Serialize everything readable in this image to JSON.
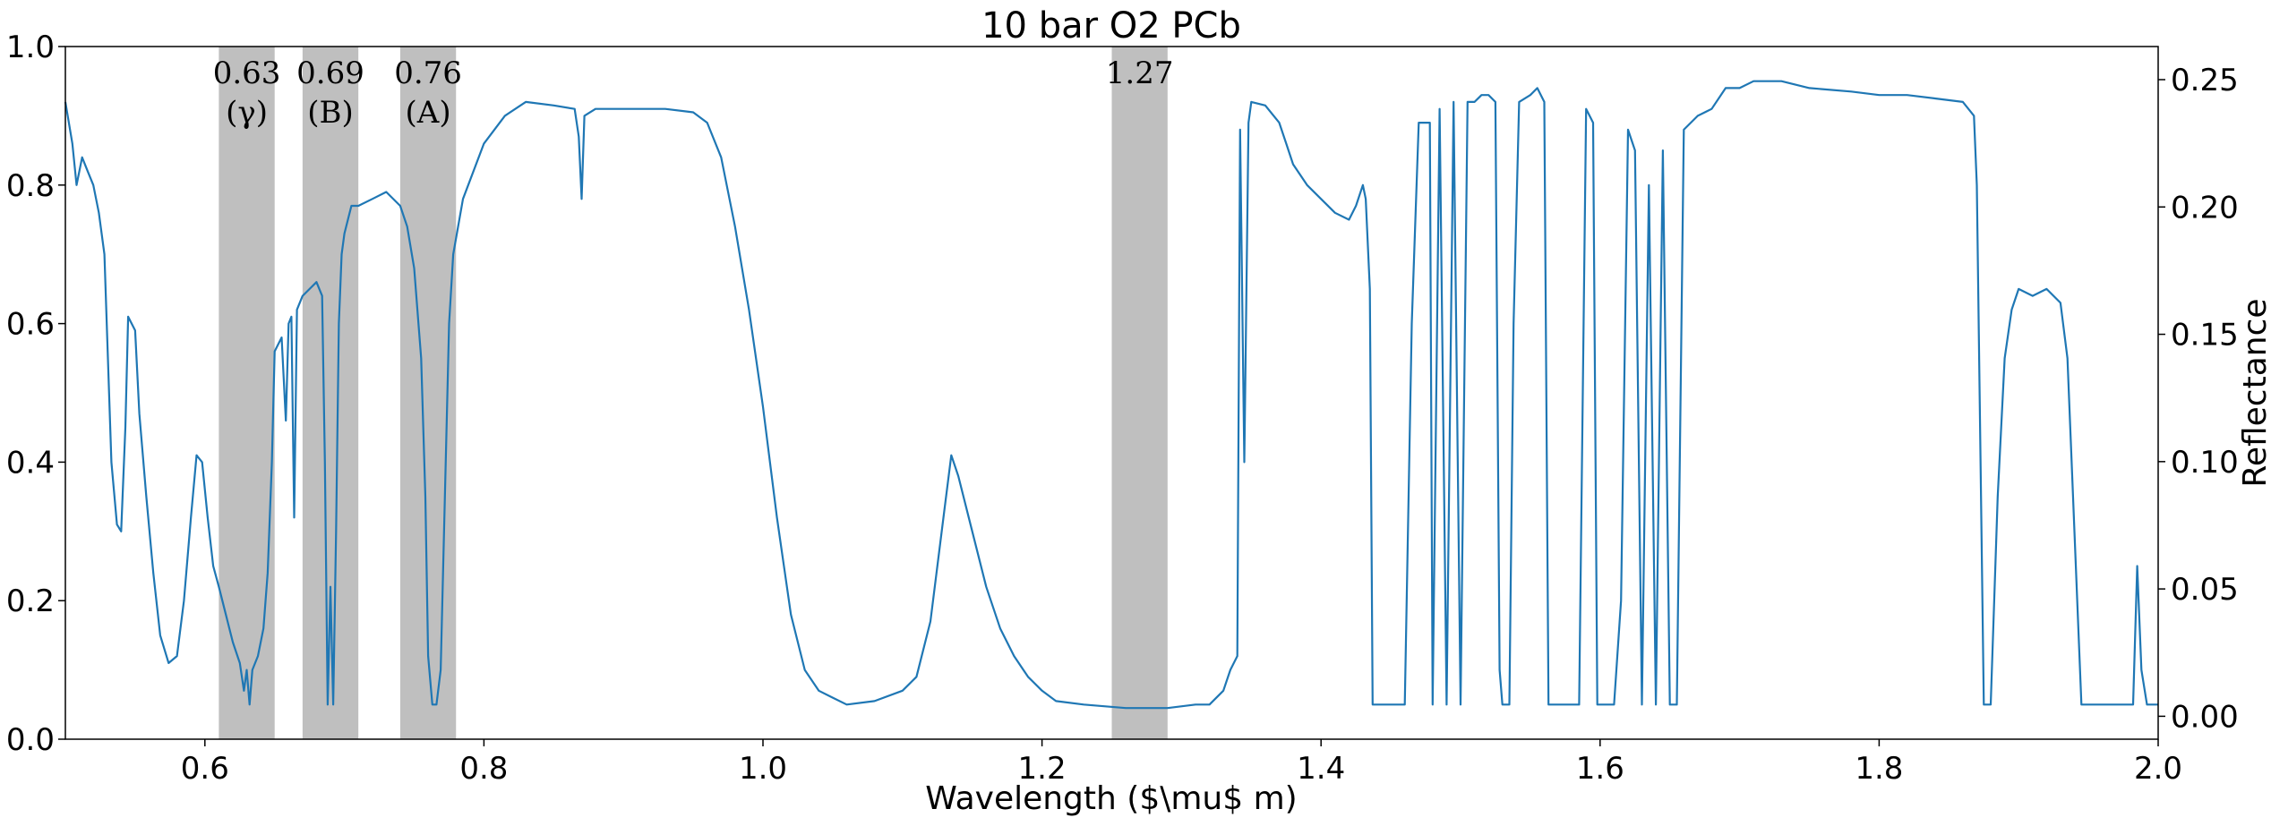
{
  "chart_data": {
    "type": "line",
    "title": "10 bar O2 PCb",
    "xlabel": "Wavelength ($\\mu$ m)",
    "ylabel_left": "",
    "ylabel_right": "Reflectance",
    "xlim": [
      0.5,
      2.0
    ],
    "ylim_left": [
      0.0,
      1.0
    ],
    "ylim_right": [
      -0.009,
      0.263
    ],
    "x_ticks": [
      "0.6",
      "0.8",
      "1.0",
      "1.2",
      "1.4",
      "1.6",
      "1.8",
      "2.0"
    ],
    "y_left_ticks": [
      "0.0",
      "0.2",
      "0.4",
      "0.6",
      "0.8",
      "1.0"
    ],
    "y_right_ticks": [
      "0.00",
      "0.05",
      "0.10",
      "0.15",
      "0.20",
      "0.25"
    ],
    "grid": false,
    "color": "#1f77b4",
    "band_color": "#bfbfbf",
    "bands": [
      {
        "x0": 0.61,
        "x1": 0.65,
        "label_top": "0.63",
        "label_bottom": "(γ)"
      },
      {
        "x0": 0.67,
        "x1": 0.71,
        "label_top": "0.69",
        "label_bottom": "(B)"
      },
      {
        "x0": 0.74,
        "x1": 0.78,
        "label_top": "0.76",
        "label_bottom": "(A)"
      },
      {
        "x0": 1.25,
        "x1": 1.29,
        "label_top": "1.27",
        "label_bottom": ""
      }
    ],
    "series": [
      {
        "values": [
          [
            0.5,
            0.92
          ],
          [
            0.505,
            0.86
          ],
          [
            0.508,
            0.8
          ],
          [
            0.512,
            0.84
          ],
          [
            0.516,
            0.82
          ],
          [
            0.52,
            0.8
          ],
          [
            0.524,
            0.76
          ],
          [
            0.528,
            0.7
          ],
          [
            0.533,
            0.4
          ],
          [
            0.537,
            0.31
          ],
          [
            0.54,
            0.3
          ],
          [
            0.543,
            0.45
          ],
          [
            0.545,
            0.61
          ],
          [
            0.55,
            0.59
          ],
          [
            0.553,
            0.47
          ],
          [
            0.558,
            0.35
          ],
          [
            0.563,
            0.24
          ],
          [
            0.568,
            0.15
          ],
          [
            0.574,
            0.11
          ],
          [
            0.58,
            0.12
          ],
          [
            0.585,
            0.2
          ],
          [
            0.59,
            0.32
          ],
          [
            0.594,
            0.41
          ],
          [
            0.598,
            0.4
          ],
          [
            0.602,
            0.32
          ],
          [
            0.606,
            0.25
          ],
          [
            0.61,
            0.22
          ],
          [
            0.615,
            0.18
          ],
          [
            0.62,
            0.14
          ],
          [
            0.625,
            0.11
          ],
          [
            0.628,
            0.07
          ],
          [
            0.63,
            0.1
          ],
          [
            0.632,
            0.05
          ],
          [
            0.634,
            0.1
          ],
          [
            0.638,
            0.12
          ],
          [
            0.642,
            0.16
          ],
          [
            0.645,
            0.24
          ],
          [
            0.648,
            0.4
          ],
          [
            0.65,
            0.56
          ],
          [
            0.655,
            0.58
          ],
          [
            0.658,
            0.46
          ],
          [
            0.66,
            0.6
          ],
          [
            0.662,
            0.61
          ],
          [
            0.664,
            0.32
          ],
          [
            0.666,
            0.62
          ],
          [
            0.67,
            0.64
          ],
          [
            0.675,
            0.65
          ],
          [
            0.68,
            0.66
          ],
          [
            0.684,
            0.64
          ],
          [
            0.686,
            0.4
          ],
          [
            0.688,
            0.05
          ],
          [
            0.69,
            0.22
          ],
          [
            0.692,
            0.05
          ],
          [
            0.694,
            0.3
          ],
          [
            0.696,
            0.6
          ],
          [
            0.698,
            0.7
          ],
          [
            0.7,
            0.73
          ],
          [
            0.705,
            0.77
          ],
          [
            0.71,
            0.77
          ],
          [
            0.72,
            0.78
          ],
          [
            0.73,
            0.79
          ],
          [
            0.74,
            0.77
          ],
          [
            0.745,
            0.74
          ],
          [
            0.75,
            0.68
          ],
          [
            0.755,
            0.55
          ],
          [
            0.758,
            0.35
          ],
          [
            0.76,
            0.12
          ],
          [
            0.763,
            0.05
          ],
          [
            0.766,
            0.05
          ],
          [
            0.769,
            0.1
          ],
          [
            0.772,
            0.35
          ],
          [
            0.775,
            0.6
          ],
          [
            0.778,
            0.7
          ],
          [
            0.785,
            0.78
          ],
          [
            0.8,
            0.86
          ],
          [
            0.815,
            0.9
          ],
          [
            0.83,
            0.92
          ],
          [
            0.85,
            0.915
          ],
          [
            0.865,
            0.91
          ],
          [
            0.868,
            0.87
          ],
          [
            0.87,
            0.78
          ],
          [
            0.872,
            0.9
          ],
          [
            0.88,
            0.91
          ],
          [
            0.9,
            0.91
          ],
          [
            0.93,
            0.91
          ],
          [
            0.95,
            0.905
          ],
          [
            0.96,
            0.89
          ],
          [
            0.97,
            0.84
          ],
          [
            0.98,
            0.74
          ],
          [
            0.99,
            0.62
          ],
          [
            1.0,
            0.48
          ],
          [
            1.01,
            0.32
          ],
          [
            1.02,
            0.18
          ],
          [
            1.03,
            0.1
          ],
          [
            1.04,
            0.07
          ],
          [
            1.05,
            0.06
          ],
          [
            1.06,
            0.05
          ],
          [
            1.08,
            0.055
          ],
          [
            1.1,
            0.07
          ],
          [
            1.11,
            0.09
          ],
          [
            1.12,
            0.17
          ],
          [
            1.13,
            0.33
          ],
          [
            1.135,
            0.41
          ],
          [
            1.14,
            0.38
          ],
          [
            1.15,
            0.3
          ],
          [
            1.16,
            0.22
          ],
          [
            1.17,
            0.16
          ],
          [
            1.18,
            0.12
          ],
          [
            1.19,
            0.09
          ],
          [
            1.2,
            0.07
          ],
          [
            1.21,
            0.055
          ],
          [
            1.23,
            0.05
          ],
          [
            1.26,
            0.045
          ],
          [
            1.29,
            0.045
          ],
          [
            1.31,
            0.05
          ],
          [
            1.32,
            0.05
          ],
          [
            1.33,
            0.07
          ],
          [
            1.335,
            0.1
          ],
          [
            1.34,
            0.12
          ],
          [
            1.342,
            0.88
          ],
          [
            1.345,
            0.4
          ],
          [
            1.348,
            0.89
          ],
          [
            1.35,
            0.92
          ],
          [
            1.36,
            0.915
          ],
          [
            1.37,
            0.89
          ],
          [
            1.375,
            0.86
          ],
          [
            1.38,
            0.83
          ],
          [
            1.39,
            0.8
          ],
          [
            1.4,
            0.78
          ],
          [
            1.41,
            0.76
          ],
          [
            1.42,
            0.75
          ],
          [
            1.425,
            0.77
          ],
          [
            1.43,
            0.8
          ],
          [
            1.432,
            0.78
          ],
          [
            1.435,
            0.65
          ],
          [
            1.437,
            0.05
          ],
          [
            1.45,
            0.05
          ],
          [
            1.46,
            0.05
          ],
          [
            1.465,
            0.6
          ],
          [
            1.47,
            0.89
          ],
          [
            1.478,
            0.89
          ],
          [
            1.48,
            0.05
          ],
          [
            1.485,
            0.91
          ],
          [
            1.49,
            0.05
          ],
          [
            1.495,
            0.92
          ],
          [
            1.5,
            0.05
          ],
          [
            1.505,
            0.92
          ],
          [
            1.51,
            0.92
          ],
          [
            1.515,
            0.93
          ],
          [
            1.52,
            0.93
          ],
          [
            1.525,
            0.92
          ],
          [
            1.528,
            0.1
          ],
          [
            1.53,
            0.05
          ],
          [
            1.535,
            0.05
          ],
          [
            1.538,
            0.6
          ],
          [
            1.542,
            0.92
          ],
          [
            1.55,
            0.93
          ],
          [
            1.555,
            0.94
          ],
          [
            1.56,
            0.92
          ],
          [
            1.563,
            0.05
          ],
          [
            1.57,
            0.05
          ],
          [
            1.58,
            0.05
          ],
          [
            1.585,
            0.05
          ],
          [
            1.59,
            0.91
          ],
          [
            1.595,
            0.89
          ],
          [
            1.598,
            0.05
          ],
          [
            1.61,
            0.05
          ],
          [
            1.615,
            0.2
          ],
          [
            1.62,
            0.88
          ],
          [
            1.625,
            0.85
          ],
          [
            1.63,
            0.05
          ],
          [
            1.635,
            0.8
          ],
          [
            1.64,
            0.05
          ],
          [
            1.645,
            0.85
          ],
          [
            1.65,
            0.05
          ],
          [
            1.655,
            0.05
          ],
          [
            1.66,
            0.88
          ],
          [
            1.67,
            0.9
          ],
          [
            1.68,
            0.91
          ],
          [
            1.69,
            0.94
          ],
          [
            1.7,
            0.94
          ],
          [
            1.71,
            0.95
          ],
          [
            1.73,
            0.95
          ],
          [
            1.75,
            0.94
          ],
          [
            1.78,
            0.935
          ],
          [
            1.8,
            0.93
          ],
          [
            1.82,
            0.93
          ],
          [
            1.84,
            0.925
          ],
          [
            1.86,
            0.92
          ],
          [
            1.868,
            0.9
          ],
          [
            1.87,
            0.8
          ],
          [
            1.875,
            0.05
          ],
          [
            1.88,
            0.05
          ],
          [
            1.885,
            0.35
          ],
          [
            1.89,
            0.55
          ],
          [
            1.895,
            0.62
          ],
          [
            1.9,
            0.65
          ],
          [
            1.91,
            0.64
          ],
          [
            1.92,
            0.65
          ],
          [
            1.93,
            0.63
          ],
          [
            1.935,
            0.55
          ],
          [
            1.94,
            0.3
          ],
          [
            1.945,
            0.05
          ],
          [
            1.96,
            0.05
          ],
          [
            1.975,
            0.05
          ],
          [
            1.982,
            0.05
          ],
          [
            1.985,
            0.25
          ],
          [
            1.988,
            0.1
          ],
          [
            1.992,
            0.05
          ],
          [
            2.0,
            0.05
          ]
        ]
      }
    ]
  }
}
